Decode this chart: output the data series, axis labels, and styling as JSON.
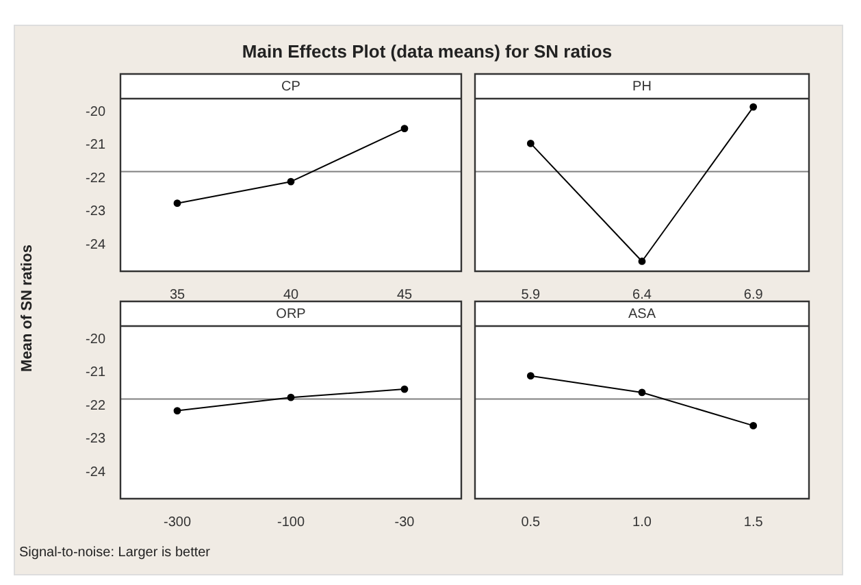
{
  "chart_data": [
    {
      "type": "other",
      "title": "Main Effects Plot (data means) for SN ratios",
      "annotations": [
        "Signal-to-noise: Larger is better"
      ]
    },
    {
      "type": "line",
      "title": "CP",
      "ylabel": "Mean of SN ratios",
      "categories": [
        "35",
        "40",
        "45"
      ],
      "series": [
        {
          "color": "#000000",
          "values": [
            -22.75,
            -22.1,
            -20.5
          ]
        }
      ],
      "ylim": [
        -24.8,
        -19.6
      ],
      "yticks": [
        -20,
        -21,
        -22,
        -23,
        -24
      ],
      "ref_lines": [
        {
          "axis": "y",
          "value": -21.8,
          "color": "#808080"
        }
      ],
      "marker": "circle",
      "line_style": "solid"
    },
    {
      "type": "line",
      "title": "PH",
      "categories": [
        "5.9",
        "6.4",
        "6.9"
      ],
      "series": [
        {
          "color": "#000000",
          "values": [
            -20.95,
            -24.5,
            -19.85
          ]
        }
      ],
      "ylim": [
        -24.8,
        -19.6
      ],
      "tick_labels": "x",
      "ref_lines": [
        {
          "axis": "y",
          "value": -21.8,
          "color": "#808080"
        }
      ],
      "marker": "circle",
      "line_style": "solid"
    },
    {
      "type": "line",
      "title": "ORP",
      "categories": [
        "-300",
        "-100",
        "-30"
      ],
      "series": [
        {
          "color": "#000000",
          "values": [
            -22.15,
            -21.75,
            -21.5
          ]
        }
      ],
      "ylim": [
        -24.8,
        -19.6
      ],
      "yticks": [
        -20,
        -21,
        -22,
        -23,
        -24
      ],
      "ref_lines": [
        {
          "axis": "y",
          "value": -21.8,
          "color": "#808080"
        }
      ],
      "marker": "circle",
      "line_style": "solid"
    },
    {
      "type": "line",
      "title": "ASA",
      "categories": [
        "0.5",
        "1.0",
        "1.5"
      ],
      "series": [
        {
          "color": "#000000",
          "values": [
            -21.1,
            -21.6,
            -22.6
          ]
        }
      ],
      "ylim": [
        -24.8,
        -19.6
      ],
      "tick_labels": "x",
      "ref_lines": [
        {
          "axis": "y",
          "value": -21.8,
          "color": "#808080"
        }
      ],
      "marker": "circle",
      "line_style": "solid"
    }
  ]
}
